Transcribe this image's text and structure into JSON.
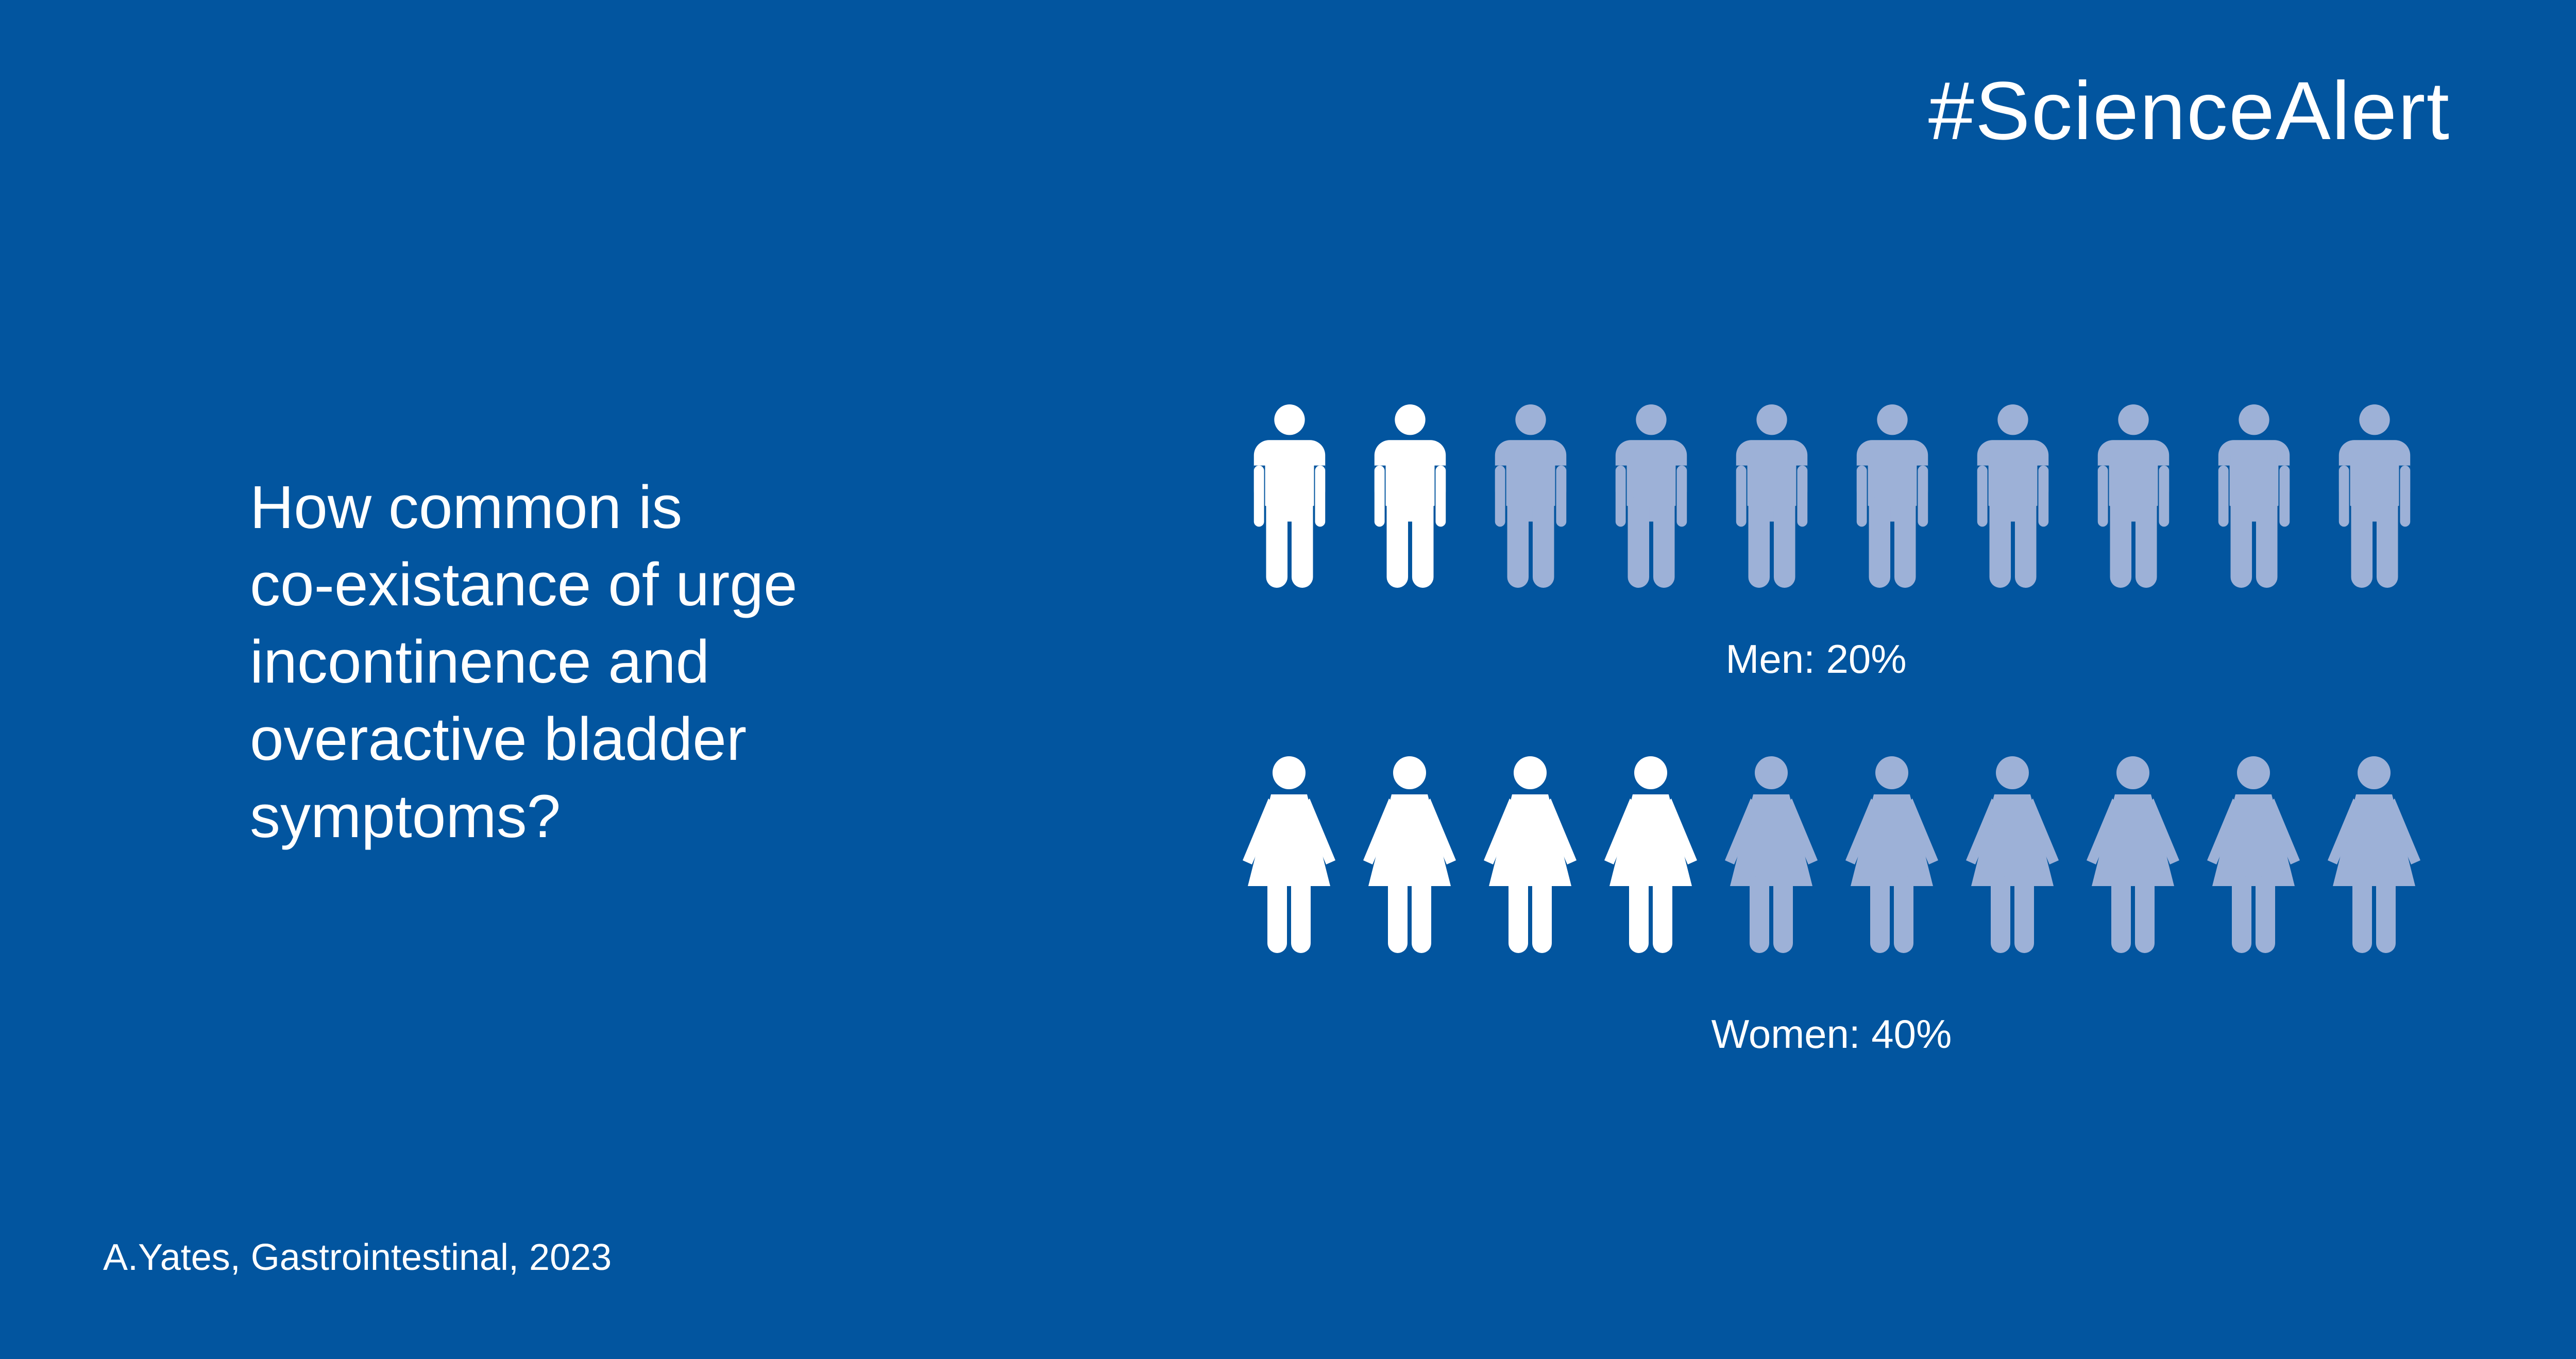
{
  "brand": {
    "hashtag": "#ScienceAlert"
  },
  "question": {
    "lines": [
      "How common is",
      "co-existance of urge",
      "incontinence and",
      "overactive bladder",
      "symptoms?"
    ]
  },
  "citation": "A.Yates, Gastrointestinal, 2023",
  "colors": {
    "background": "#02559f",
    "highlight": "#ffffff",
    "muted": "#9db1d7"
  },
  "chart_data": {
    "type": "pictogram",
    "icons_per_row": 10,
    "series": [
      {
        "name": "Men",
        "icon": "man-icon",
        "value_percent": 20,
        "filled_icons": 2,
        "label": "Men: 20%"
      },
      {
        "name": "Women",
        "icon": "woman-icon",
        "value_percent": 40,
        "filled_icons": 4,
        "label": "Women: 40%"
      }
    ]
  }
}
